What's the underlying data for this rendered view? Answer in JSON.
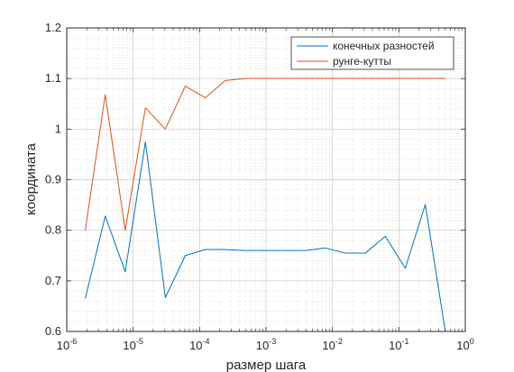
{
  "chart_data": {
    "type": "line",
    "title": "",
    "xlabel": "размер шага",
    "ylabel": "координата",
    "x_scale": "log",
    "xlim": [
      1e-06,
      1
    ],
    "ylim": [
      0.6,
      1.2
    ],
    "grid": true,
    "minor_grid": true,
    "legend_position": "top-right",
    "x_tick_values": [
      1e-06,
      1e-05,
      0.0001,
      0.001,
      0.01,
      0.1,
      1
    ],
    "x_tick_labels": [
      {
        "base": "10",
        "exp": "-6"
      },
      {
        "base": "10",
        "exp": "-5"
      },
      {
        "base": "10",
        "exp": "-4"
      },
      {
        "base": "10",
        "exp": "-3"
      },
      {
        "base": "10",
        "exp": "-2"
      },
      {
        "base": "10",
        "exp": "-1"
      },
      {
        "base": "10",
        "exp": "0"
      }
    ],
    "y_ticks": [
      "0.6",
      "0.7",
      "0.8",
      "0.9",
      "1",
      "1.1",
      "1.2"
    ],
    "x": [
      1.9e-06,
      3.8e-06,
      7.6e-06,
      1.53e-05,
      3.05e-05,
      6.1e-05,
      0.000122,
      0.000244,
      0.000488,
      0.000977,
      0.00195,
      0.00391,
      0.00781,
      0.0156,
      0.0313,
      0.0625,
      0.125,
      0.25,
      0.5
    ],
    "series": [
      {
        "name": "конечных разностей",
        "color": "#0072bd",
        "values": [
          0.665,
          0.828,
          0.718,
          0.975,
          0.667,
          0.75,
          0.762,
          0.762,
          0.76,
          0.76,
          0.76,
          0.76,
          0.765,
          0.755,
          0.755,
          0.788,
          0.725,
          0.851,
          0.6
        ]
      },
      {
        "name": "рунге-кутты",
        "color": "#d95319",
        "values": [
          0.8,
          1.068,
          0.8,
          1.042,
          1.0,
          1.085,
          1.062,
          1.096,
          1.1,
          1.1,
          1.1,
          1.1,
          1.1,
          1.1,
          1.1,
          1.1,
          1.1,
          1.1,
          1.1
        ]
      }
    ]
  }
}
